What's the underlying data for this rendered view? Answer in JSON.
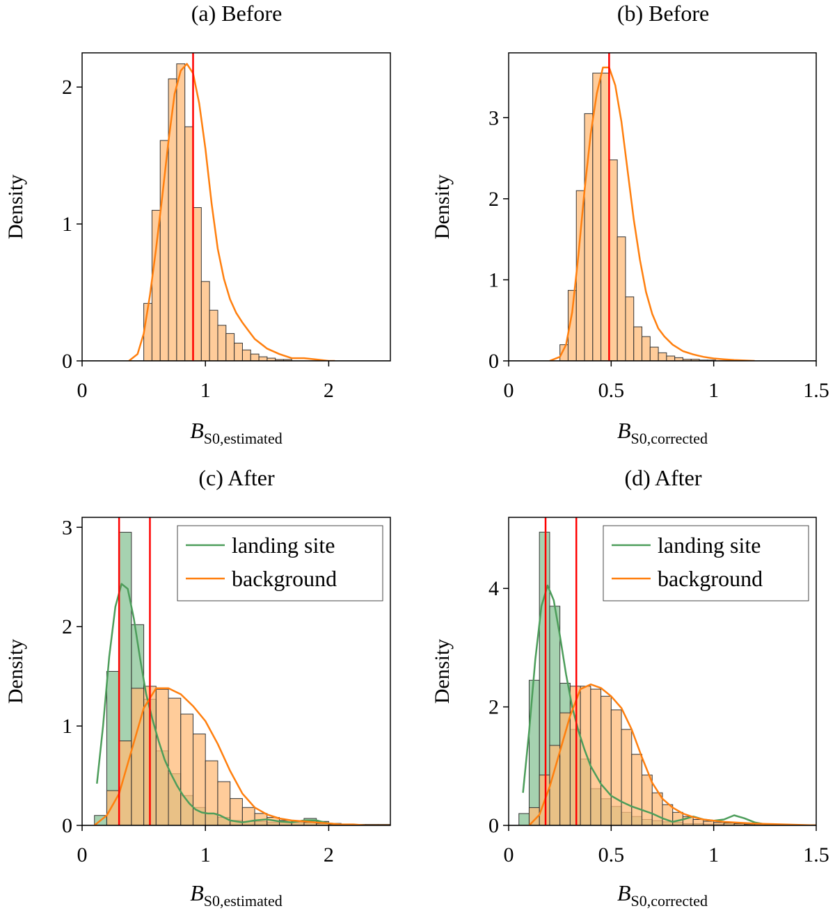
{
  "colors": {
    "background_kde": "#ff7f0e",
    "background_bar": "#ffbb78",
    "landing_kde": "#4c9d5a",
    "landing_bar": "#6ab47b",
    "overlap_bar": "#c9a054",
    "marker": "#ff0000",
    "axis": "#000000"
  },
  "chart_data": [
    {
      "type": "histogram",
      "title": "(a) Before",
      "xlabel": {
        "main": "B",
        "sub": "S0,estimated"
      },
      "ylabel": "Density",
      "xlim": [
        0,
        2.5
      ],
      "ylim": [
        0,
        2.25
      ],
      "xticks": [
        0,
        1,
        2
      ],
      "xtick_labels": [
        "0",
        "1",
        "2"
      ],
      "yticks": [
        0,
        1,
        2
      ],
      "ytick_labels": [
        "0",
        "1",
        "2"
      ],
      "series": [
        {
          "name": "background",
          "color_key": "background",
          "bin_start": 0.5,
          "bin_width": 0.0667,
          "values": [
            0.42,
            1.1,
            1.61,
            2.06,
            2.17,
            1.71,
            1.12,
            0.58,
            0.37,
            0.26,
            0.2,
            0.13,
            0.08,
            0.05,
            0.03,
            0.02,
            0.01,
            0.01
          ],
          "kde_x": [
            0.38,
            0.45,
            0.5,
            0.55,
            0.6,
            0.65,
            0.7,
            0.75,
            0.8,
            0.85,
            0.9,
            0.95,
            1.0,
            1.05,
            1.1,
            1.15,
            1.2,
            1.25,
            1.3,
            1.35,
            1.4,
            1.5,
            1.6,
            1.7,
            1.8,
            1.9,
            2.0,
            2.05
          ],
          "kde_y": [
            0.0,
            0.05,
            0.2,
            0.48,
            0.82,
            1.2,
            1.6,
            1.95,
            2.12,
            2.17,
            2.1,
            1.88,
            1.55,
            1.15,
            0.82,
            0.6,
            0.45,
            0.35,
            0.28,
            0.22,
            0.16,
            0.09,
            0.05,
            0.02,
            0.02,
            0.01,
            0.0,
            0.0
          ]
        }
      ],
      "vlines": [
        0.9
      ]
    },
    {
      "type": "histogram",
      "title": "(b) Before",
      "xlabel": {
        "main": "B",
        "sub": "S0,corrected"
      },
      "ylabel": "Density",
      "xlim": [
        0,
        1.5
      ],
      "ylim": [
        0,
        3.8
      ],
      "xticks": [
        0,
        0.5,
        1,
        1.5
      ],
      "xtick_labels": [
        "0",
        "0.5",
        "1",
        "1.5"
      ],
      "yticks": [
        0,
        1,
        2,
        3
      ],
      "ytick_labels": [
        "0",
        "1",
        "2",
        "3"
      ],
      "series": [
        {
          "name": "background",
          "color_key": "background",
          "bin_start": 0.25,
          "bin_width": 0.04,
          "values": [
            0.2,
            0.87,
            2.1,
            3.05,
            3.55,
            3.55,
            2.48,
            1.53,
            0.79,
            0.42,
            0.3,
            0.17,
            0.1,
            0.06,
            0.04,
            0.02,
            0.02,
            0.01,
            0.01
          ],
          "kde_x": [
            0.2,
            0.25,
            0.28,
            0.31,
            0.34,
            0.37,
            0.4,
            0.43,
            0.46,
            0.49,
            0.52,
            0.55,
            0.58,
            0.61,
            0.64,
            0.67,
            0.7,
            0.73,
            0.76,
            0.8,
            0.85,
            0.9,
            0.95,
            1.0,
            1.05,
            1.1,
            1.2
          ],
          "kde_y": [
            0.0,
            0.05,
            0.2,
            0.6,
            1.3,
            2.1,
            2.8,
            3.3,
            3.62,
            3.62,
            3.4,
            2.95,
            2.35,
            1.75,
            1.25,
            0.85,
            0.58,
            0.4,
            0.3,
            0.2,
            0.12,
            0.08,
            0.05,
            0.03,
            0.02,
            0.01,
            0.0
          ]
        }
      ],
      "vlines": [
        0.49
      ]
    },
    {
      "type": "histogram",
      "title": "(c) After",
      "xlabel": {
        "main": "B",
        "sub": "S0,estimated"
      },
      "ylabel": "Density",
      "xlim": [
        0,
        2.5
      ],
      "ylim": [
        0,
        3.1
      ],
      "xticks": [
        0,
        1,
        2
      ],
      "xtick_labels": [
        "0",
        "1",
        "2"
      ],
      "yticks": [
        0,
        1,
        2,
        3
      ],
      "ytick_labels": [
        "0",
        "1",
        "2",
        "3"
      ],
      "legend": {
        "position": "top-right",
        "entries": [
          "landing site",
          "background"
        ]
      },
      "series": [
        {
          "name": "landing site",
          "color_key": "landing",
          "bin_start": 0.1,
          "bin_width": 0.1,
          "values": [
            0.1,
            1.55,
            2.95,
            2.02,
            1.27,
            0.75,
            0.52,
            0.3,
            0.18,
            0.12,
            0.08,
            0.05,
            0.04,
            0.04,
            0.03,
            0.03,
            0.03,
            0.07,
            0.04,
            0.02
          ],
          "kde_x": [
            0.12,
            0.17,
            0.22,
            0.27,
            0.32,
            0.37,
            0.42,
            0.47,
            0.52,
            0.57,
            0.62,
            0.67,
            0.72,
            0.77,
            0.82,
            0.87,
            0.92,
            0.97,
            1.02,
            1.07,
            1.12,
            1.2,
            1.3,
            1.4,
            1.5,
            1.6,
            1.7,
            1.8,
            1.9,
            2.0,
            2.1,
            2.2
          ],
          "kde_y": [
            0.42,
            1.0,
            1.7,
            2.2,
            2.43,
            2.38,
            2.08,
            1.68,
            1.32,
            1.07,
            0.85,
            0.66,
            0.52,
            0.4,
            0.3,
            0.22,
            0.16,
            0.13,
            0.12,
            0.12,
            0.1,
            0.05,
            0.03,
            0.05,
            0.06,
            0.04,
            0.03,
            0.05,
            0.05,
            0.02,
            0.01,
            0.0
          ]
        },
        {
          "name": "background",
          "color_key": "background",
          "bin_start": 0.2,
          "bin_width": 0.1,
          "values": [
            0.35,
            0.85,
            1.38,
            1.4,
            1.37,
            1.28,
            1.12,
            0.92,
            0.65,
            0.44,
            0.27,
            0.18,
            0.12,
            0.08,
            0.05,
            0.04,
            0.03,
            0.02,
            0.01,
            0.01,
            0.01,
            0.01,
            0.01
          ],
          "kde_x": [
            0.1,
            0.2,
            0.3,
            0.4,
            0.5,
            0.6,
            0.7,
            0.8,
            0.9,
            1.0,
            1.1,
            1.2,
            1.3,
            1.4,
            1.5,
            1.6,
            1.7,
            1.8,
            1.9,
            2.0,
            2.1,
            2.2,
            2.3,
            2.4,
            2.5
          ],
          "kde_y": [
            0.0,
            0.1,
            0.32,
            0.75,
            1.18,
            1.38,
            1.38,
            1.32,
            1.2,
            1.05,
            0.82,
            0.55,
            0.32,
            0.18,
            0.11,
            0.07,
            0.05,
            0.04,
            0.03,
            0.02,
            0.01,
            0.01,
            0.0,
            0.0,
            0.0
          ]
        }
      ],
      "vlines": [
        0.3,
        0.55
      ]
    },
    {
      "type": "histogram",
      "title": "(d) After",
      "xlabel": {
        "main": "B",
        "sub": "S0,corrected"
      },
      "ylabel": "Density",
      "xlim": [
        0,
        1.5
      ],
      "ylim": [
        0,
        5.2
      ],
      "xticks": [
        0,
        0.5,
        1,
        1.5
      ],
      "xtick_labels": [
        "0",
        "0.5",
        "1",
        "1.5"
      ],
      "yticks": [
        0,
        2,
        4
      ],
      "ytick_labels": [
        "0",
        "2",
        "4"
      ],
      "legend": {
        "position": "top-right",
        "entries": [
          "landing site",
          "background"
        ]
      },
      "series": [
        {
          "name": "landing site",
          "color_key": "landing",
          "bin_start": 0.05,
          "bin_width": 0.05,
          "values": [
            0.2,
            2.45,
            4.95,
            3.7,
            2.4,
            1.62,
            1.12,
            0.62,
            0.45,
            0.32,
            0.22,
            0.15,
            0.1,
            0.08,
            0.06,
            0.05,
            0.03,
            0.03,
            0.02,
            0.02,
            0.05,
            0.03,
            0.02
          ],
          "kde_x": [
            0.07,
            0.1,
            0.13,
            0.16,
            0.19,
            0.22,
            0.25,
            0.28,
            0.31,
            0.34,
            0.37,
            0.4,
            0.45,
            0.5,
            0.55,
            0.6,
            0.65,
            0.7,
            0.75,
            0.8,
            0.85,
            0.9,
            0.95,
            1.0,
            1.05,
            1.1,
            1.15,
            1.2,
            1.25,
            1.3
          ],
          "kde_y": [
            0.55,
            1.6,
            2.8,
            3.7,
            4.05,
            3.8,
            3.2,
            2.55,
            2.0,
            1.6,
            1.28,
            1.0,
            0.7,
            0.5,
            0.4,
            0.32,
            0.26,
            0.2,
            0.12,
            0.06,
            0.1,
            0.15,
            0.1,
            0.08,
            0.1,
            0.17,
            0.12,
            0.05,
            0.02,
            0.0
          ]
        },
        {
          "name": "background",
          "color_key": "background",
          "bin_start": 0.1,
          "bin_width": 0.05,
          "values": [
            0.3,
            0.85,
            1.35,
            1.9,
            2.35,
            2.35,
            2.3,
            2.18,
            1.95,
            1.62,
            1.2,
            0.85,
            0.55,
            0.35,
            0.22,
            0.15,
            0.1,
            0.07,
            0.05,
            0.04,
            0.03,
            0.02,
            0.02,
            0.01,
            0.01,
            0.01,
            0.01,
            0.01
          ],
          "kde_x": [
            0.1,
            0.15,
            0.2,
            0.25,
            0.3,
            0.35,
            0.4,
            0.45,
            0.5,
            0.55,
            0.6,
            0.65,
            0.7,
            0.75,
            0.8,
            0.85,
            0.9,
            0.95,
            1.0,
            1.05,
            1.1,
            1.2,
            1.3,
            1.4,
            1.5
          ],
          "kde_y": [
            0.0,
            0.18,
            0.65,
            1.25,
            1.85,
            2.3,
            2.38,
            2.32,
            2.18,
            1.98,
            1.62,
            1.15,
            0.72,
            0.45,
            0.3,
            0.2,
            0.14,
            0.1,
            0.08,
            0.06,
            0.05,
            0.03,
            0.02,
            0.01,
            0.0
          ]
        }
      ],
      "vlines": [
        0.18,
        0.33
      ]
    }
  ]
}
